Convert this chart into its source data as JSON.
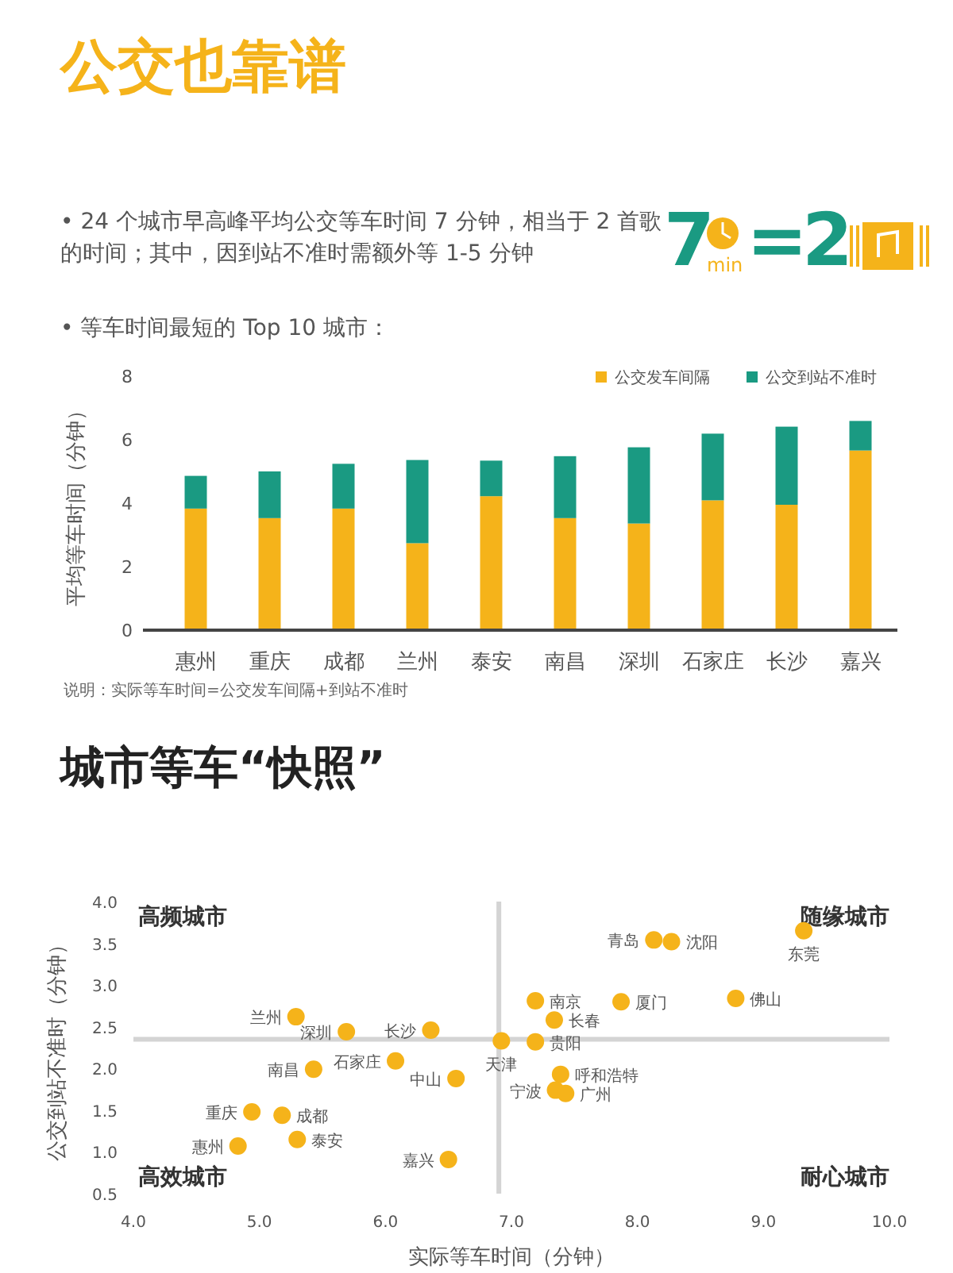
{
  "chart_data": [
    {
      "type": "bar",
      "title": "公交也靠谱",
      "stacked": true,
      "ylabel": "平均等车时间（分钟）",
      "legend": "top right",
      "categories": [
        "惠州",
        "重庆",
        "成都",
        "兰州",
        "泰安",
        "南昌",
        "深圳",
        "石家庄",
        "长沙",
        "嘉兴"
      ],
      "series": [
        {
          "name": "公交发车间隔",
          "color": "#f5b31a",
          "values": [
            3.83,
            3.53,
            3.83,
            2.74,
            4.22,
            3.53,
            3.36,
            4.09,
            3.95,
            5.66
          ]
        },
        {
          "name": "公交到站不准时",
          "color": "#1a9a82",
          "values": [
            1.03,
            1.47,
            1.41,
            2.62,
            1.12,
            1.95,
            2.4,
            2.1,
            2.46,
            0.93
          ]
        }
      ],
      "ylim": [
        0,
        8
      ],
      "yticks": [
        0,
        2,
        4,
        6,
        8
      ],
      "grid": false,
      "annotations": [
        "• 24 个城市早高峰平均公交等车时间 7 分钟，相当于 2 首歌的时间；其中，因到站不准时需额外等 1-5 分钟",
        "7",
        "min",
        "=",
        "2",
        "• 等车时间最短的 Top 10 城市：",
        "说明：实际等车时间=公交发车间隔+到站不准时"
      ]
    },
    {
      "type": "scatter",
      "title": "城市等车“快照”",
      "xlabel": "实际等车时间（分钟）",
      "ylabel": "公交到站不准时（分钟）",
      "marker": "circle",
      "series": [
        {
          "color": "#f5b31a",
          "x": [
            5.29,
            5.69,
            6.36,
            6.92,
            6.08,
            5.43,
            6.56,
            4.94,
            5.18,
            5.3,
            4.83,
            6.5,
            8.13,
            8.27,
            9.32,
            7.19,
            7.87,
            8.78,
            7.34,
            7.19,
            7.39,
            7.35,
            7.43
          ],
          "values": [
            2.62,
            2.44,
            2.46,
            2.33,
            2.09,
            1.99,
            1.88,
            1.48,
            1.44,
            1.15,
            1.07,
            0.91,
            3.54,
            3.52,
            3.65,
            2.81,
            2.8,
            2.84,
            2.58,
            2.32,
            1.93,
            1.74,
            1.7
          ],
          "value_labels": [
            "兰州",
            "深圳",
            "长沙",
            "天津",
            "石家庄",
            "南昌",
            "中山",
            "重庆",
            "成都",
            "泰安",
            "惠州",
            "嘉兴",
            "青岛",
            "沈阳",
            "东莞",
            "南京",
            "厦门",
            "佛山",
            "长春",
            "贵阳",
            "呼和浩特",
            "宁波",
            "广州"
          ]
        }
      ],
      "xlim": [
        4,
        10
      ],
      "xticks": [
        {
          "value": 4,
          "label": "4.0"
        },
        {
          "value": 5,
          "label": "5.0"
        },
        {
          "value": 6,
          "label": "6.0"
        },
        {
          "value": 7,
          "label": "7.0"
        },
        {
          "value": 8,
          "label": "8.0"
        },
        {
          "value": 9,
          "label": "9.0"
        },
        {
          "value": 10,
          "label": "10.0"
        }
      ],
      "ylim": [
        0.5,
        4
      ],
      "yticks": [
        {
          "value": 0.5,
          "label": "0.5"
        },
        {
          "value": 1,
          "label": "1.0"
        },
        {
          "value": 1.5,
          "label": "1.5"
        },
        {
          "value": 2,
          "label": "2.0"
        },
        {
          "value": 2.5,
          "label": "2.5"
        },
        {
          "value": 3,
          "label": "3.0"
        },
        {
          "value": 3.5,
          "label": "3.5"
        },
        {
          "value": 4,
          "label": "4.0"
        }
      ],
      "ref_lines": [
        {
          "axis": "x",
          "value": 6.9,
          "color": "#d4d4d4"
        },
        {
          "axis": "y",
          "value": 2.35,
          "color": "#d4d4d4"
        }
      ],
      "annotations": [
        "高频城市",
        "随缘城市",
        "高效城市",
        "耐心城市"
      ]
    }
  ]
}
